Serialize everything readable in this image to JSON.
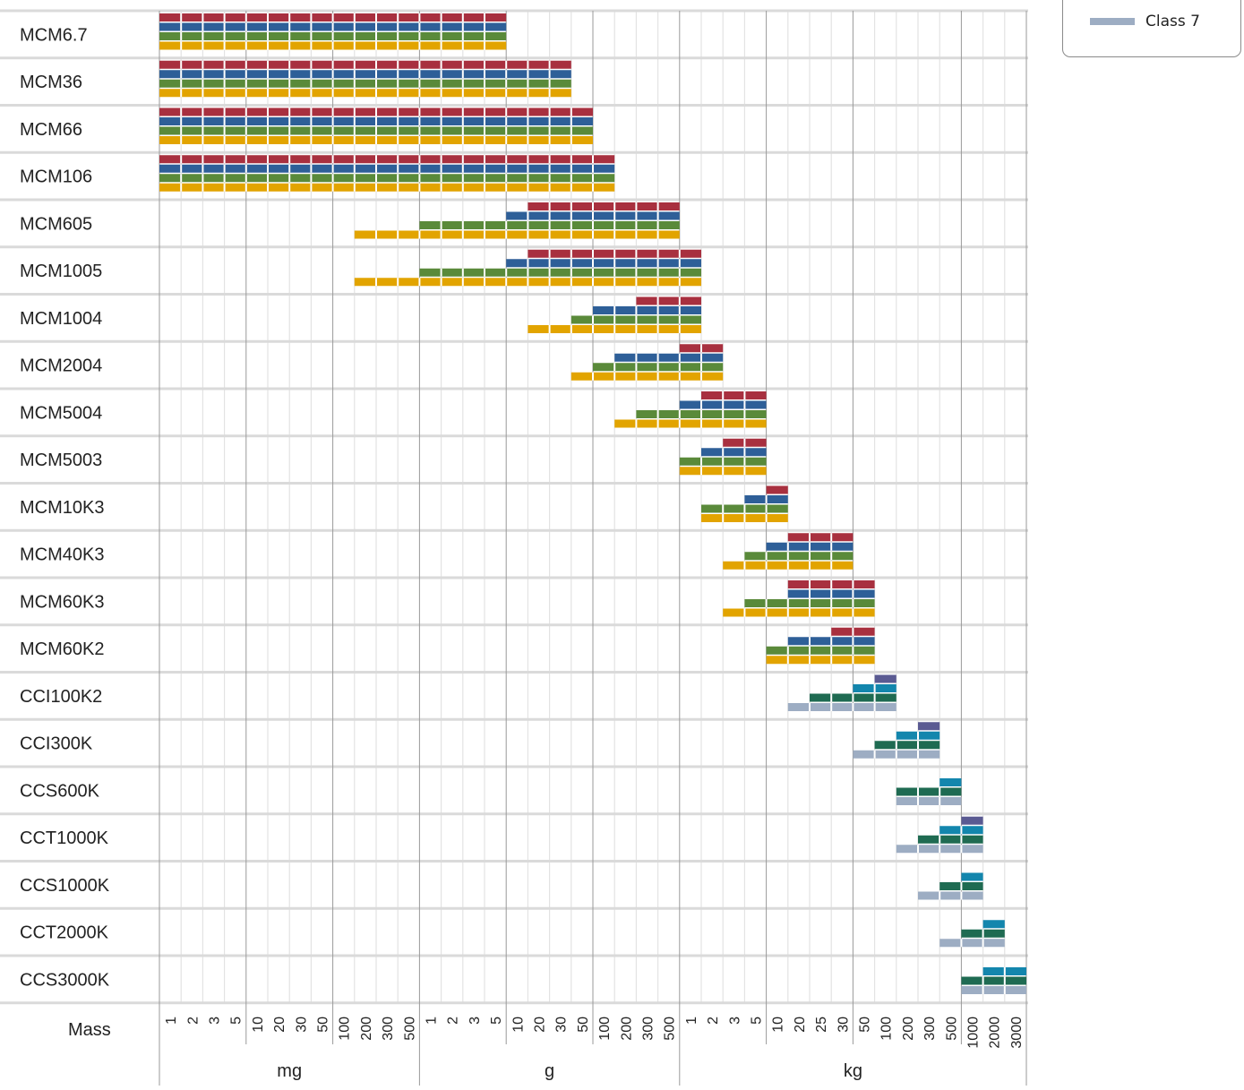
{
  "chart_data": {
    "type": "bar",
    "ylabel": "Mass",
    "x_ticks": [
      "1",
      "2",
      "3",
      "5",
      "10",
      "20",
      "30",
      "50",
      "100",
      "200",
      "300",
      "500",
      "1",
      "2",
      "3",
      "5",
      "10",
      "20",
      "30",
      "50",
      "100",
      "200",
      "300",
      "500",
      "1",
      "2",
      "3",
      "5",
      "10",
      "20",
      "25",
      "30",
      "50",
      "100",
      "200",
      "300",
      "500",
      "1000",
      "2000",
      "3000"
    ],
    "unit_groups": [
      {
        "label": "mg",
        "from": 0,
        "to": 11
      },
      {
        "label": "g",
        "from": 12,
        "to": 23
      },
      {
        "label": "kg",
        "from": 24,
        "to": 39
      }
    ],
    "classes": [
      {
        "name": "Class 7",
        "color": "#9dadc3"
      }
    ],
    "bar_colors": {
      "red": "#a8303f",
      "blue": "#2e5f98",
      "green": "#5a8a3a",
      "yellow": "#e2a400",
      "purple": "#5a5a92",
      "cyan": "#1386ad",
      "teal": "#1f6b52",
      "gray": "#9dadc3"
    },
    "models": [
      {
        "name": "MCM6.7",
        "bars": [
          [
            "red",
            0,
            15
          ],
          [
            "blue",
            0,
            15
          ],
          [
            "green",
            0,
            15
          ],
          [
            "yellow",
            0,
            15
          ]
        ]
      },
      {
        "name": "MCM36",
        "bars": [
          [
            "red",
            0,
            18
          ],
          [
            "blue",
            0,
            18
          ],
          [
            "green",
            0,
            18
          ],
          [
            "yellow",
            0,
            18
          ]
        ]
      },
      {
        "name": "MCM66",
        "bars": [
          [
            "red",
            0,
            19
          ],
          [
            "blue",
            0,
            19
          ],
          [
            "green",
            0,
            19
          ],
          [
            "yellow",
            0,
            19
          ]
        ]
      },
      {
        "name": "MCM106",
        "bars": [
          [
            "red",
            0,
            20
          ],
          [
            "blue",
            0,
            20
          ],
          [
            "green",
            0,
            20
          ],
          [
            "yellow",
            0,
            20
          ]
        ]
      },
      {
        "name": "MCM605",
        "bars": [
          [
            "red",
            17,
            23
          ],
          [
            "blue",
            16,
            23
          ],
          [
            "green",
            12,
            23
          ],
          [
            "yellow",
            9,
            23
          ]
        ]
      },
      {
        "name": "MCM1005",
        "bars": [
          [
            "red",
            17,
            24
          ],
          [
            "blue",
            16,
            24
          ],
          [
            "green",
            12,
            24
          ],
          [
            "yellow",
            9,
            24
          ]
        ]
      },
      {
        "name": "MCM1004",
        "bars": [
          [
            "red",
            22,
            24
          ],
          [
            "blue",
            20,
            24
          ],
          [
            "green",
            19,
            24
          ],
          [
            "yellow",
            17,
            24
          ]
        ]
      },
      {
        "name": "MCM2004",
        "bars": [
          [
            "red",
            24,
            25
          ],
          [
            "blue",
            21,
            25
          ],
          [
            "green",
            20,
            25
          ],
          [
            "yellow",
            19,
            25
          ]
        ]
      },
      {
        "name": "MCM5004",
        "bars": [
          [
            "red",
            25,
            27
          ],
          [
            "blue",
            24,
            27
          ],
          [
            "green",
            22,
            27
          ],
          [
            "yellow",
            21,
            27
          ]
        ]
      },
      {
        "name": "MCM5003",
        "bars": [
          [
            "red",
            26,
            27
          ],
          [
            "blue",
            25,
            27
          ],
          [
            "green",
            24,
            27
          ],
          [
            "yellow",
            24,
            27
          ]
        ]
      },
      {
        "name": "MCM10K3",
        "bars": [
          [
            "red",
            28,
            28
          ],
          [
            "blue",
            27,
            28
          ],
          [
            "green",
            25,
            28
          ],
          [
            "yellow",
            25,
            28
          ]
        ]
      },
      {
        "name": "MCM40K3",
        "bars": [
          [
            "red",
            29,
            31
          ],
          [
            "blue",
            28,
            31
          ],
          [
            "green",
            27,
            31
          ],
          [
            "yellow",
            26,
            31
          ]
        ]
      },
      {
        "name": "MCM60K3",
        "bars": [
          [
            "red",
            29,
            32
          ],
          [
            "blue",
            29,
            32
          ],
          [
            "green",
            27,
            32
          ],
          [
            "yellow",
            26,
            32
          ]
        ]
      },
      {
        "name": "MCM60K2",
        "bars": [
          [
            "red",
            31,
            32
          ],
          [
            "blue",
            29,
            32
          ],
          [
            "green",
            28,
            32
          ],
          [
            "yellow",
            28,
            32
          ]
        ]
      },
      {
        "name": "CCI100K2",
        "bars": [
          [
            "purple",
            33,
            33
          ],
          [
            "cyan",
            32,
            33
          ],
          [
            "teal",
            30,
            33
          ],
          [
            "gray",
            29,
            33
          ]
        ]
      },
      {
        "name": "CCI300K",
        "bars": [
          [
            "purple",
            35,
            35
          ],
          [
            "cyan",
            34,
            35
          ],
          [
            "teal",
            33,
            35
          ],
          [
            "gray",
            32,
            35
          ]
        ]
      },
      {
        "name": "CCS600K",
        "bars": [
          [
            "cyan",
            36,
            36
          ],
          [
            "teal",
            34,
            36
          ],
          [
            "gray",
            34,
            36
          ]
        ]
      },
      {
        "name": "CCT1000K",
        "bars": [
          [
            "purple",
            37,
            37
          ],
          [
            "cyan",
            36,
            37
          ],
          [
            "teal",
            35,
            37
          ],
          [
            "gray",
            34,
            37
          ]
        ]
      },
      {
        "name": "CCS1000K",
        "bars": [
          [
            "cyan",
            37,
            37
          ],
          [
            "teal",
            36,
            37
          ],
          [
            "gray",
            35,
            37
          ]
        ]
      },
      {
        "name": "CCT2000K",
        "bars": [
          [
            "cyan",
            38,
            38
          ],
          [
            "teal",
            37,
            38
          ],
          [
            "gray",
            36,
            38
          ]
        ]
      },
      {
        "name": "CCS3000K",
        "bars": [
          [
            "cyan",
            38,
            39
          ],
          [
            "teal",
            37,
            39
          ],
          [
            "gray",
            37,
            39
          ]
        ]
      }
    ]
  }
}
